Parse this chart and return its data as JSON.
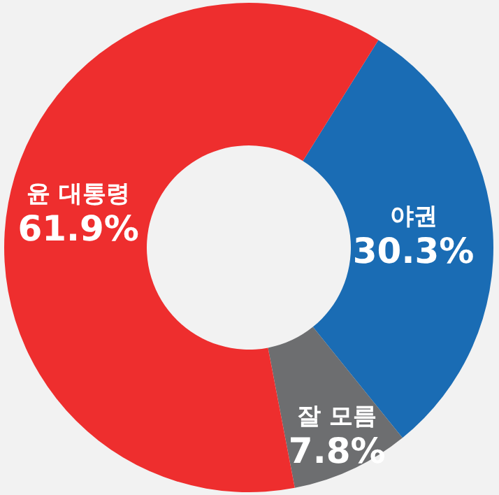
{
  "chart_data": {
    "type": "donut",
    "categories": [
      "야권",
      "잘 모름",
      "윤 대통령"
    ],
    "values": [
      30.3,
      7.8,
      61.9
    ],
    "colors": [
      "#1a6cb4",
      "#6d6e70",
      "#ee2e2e"
    ],
    "value_labels": [
      "30.3%",
      "7.8%",
      "61.9%"
    ]
  }
}
